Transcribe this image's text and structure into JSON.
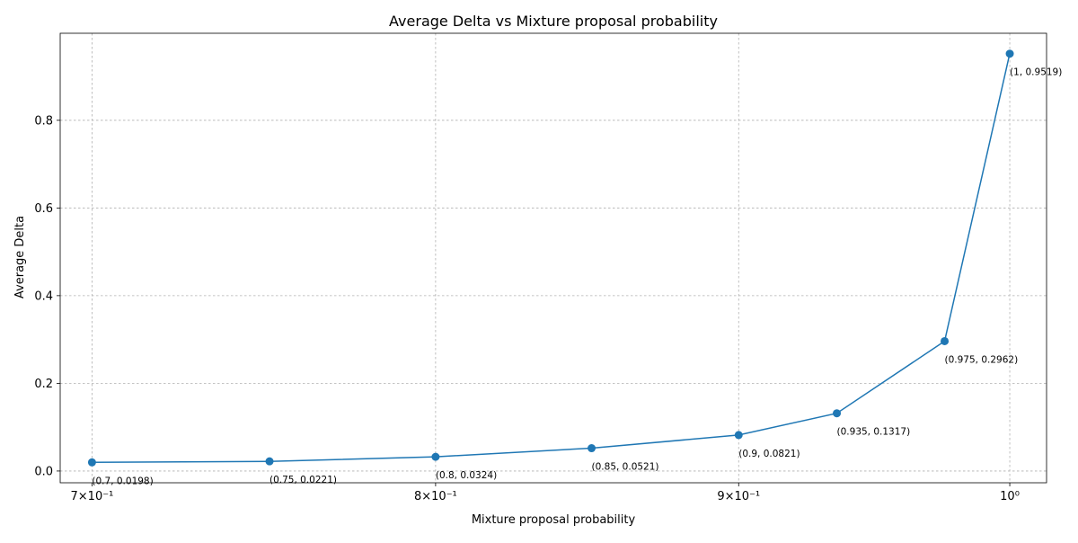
{
  "chart_data": {
    "type": "line",
    "title": "Average Delta vs Mixture proposal probability",
    "xlabel": "Mixture proposal probability",
    "ylabel": "Average Delta",
    "x_scale": "log",
    "xlim": [
      0.6914,
      1.0144
    ],
    "ylim": [
      -0.0268,
      0.9985
    ],
    "grid": true,
    "series": [
      {
        "color": "#1f77b4",
        "marker": "circle",
        "x": [
          0.7,
          0.75,
          0.8,
          0.85,
          0.9,
          0.935,
          0.975,
          1
        ],
        "y": [
          0.0198,
          0.0221,
          0.0324,
          0.0521,
          0.0821,
          0.1317,
          0.2962,
          0.9519
        ],
        "labels": [
          "(0.7, 0.0198)",
          "(0.75, 0.0221)",
          "(0.8, 0.0324)",
          "(0.85, 0.0521)",
          "(0.9, 0.0821)",
          "(0.935, 0.1317)",
          "(0.975, 0.2962)",
          "(1, 0.9519)"
        ]
      }
    ],
    "xticks": [
      {
        "value": 0.7,
        "label": "7×10⁻¹"
      },
      {
        "value": 0.8,
        "label": "8×10⁻¹"
      },
      {
        "value": 0.9,
        "label": "9×10⁻¹"
      },
      {
        "value": 1.0,
        "label": "10⁰"
      }
    ],
    "yticks": [
      {
        "value": 0.0,
        "label": "0.0"
      },
      {
        "value": 0.2,
        "label": "0.2"
      },
      {
        "value": 0.4,
        "label": "0.4"
      },
      {
        "value": 0.6,
        "label": "0.6"
      },
      {
        "value": 0.8,
        "label": "0.8"
      }
    ]
  }
}
